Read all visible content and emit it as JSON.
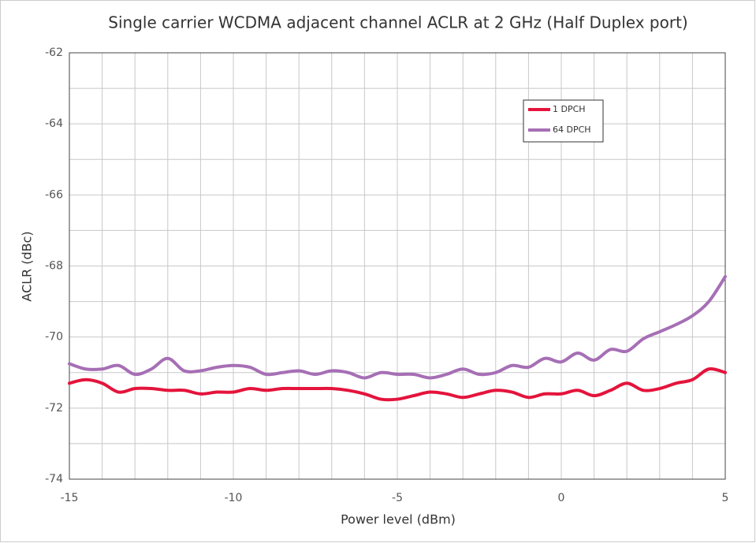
{
  "chart_data": {
    "type": "line",
    "title": "Single carrier WCDMA adjacent channel ACLR at 2 GHz (Half Duplex port)",
    "xlabel": "Power level (dBm)",
    "ylabel": "ACLR (dBc)",
    "x": [
      -15,
      -14.5,
      -14,
      -13.5,
      -13,
      -12.5,
      -12,
      -11.5,
      -11,
      -10.5,
      -10,
      -9.5,
      -9,
      -8.5,
      -8,
      -7.5,
      -7,
      -6.5,
      -6,
      -5.5,
      -5,
      -4.5,
      -4,
      -3.5,
      -3,
      -2.5,
      -2,
      -1.5,
      -1,
      -0.5,
      0,
      0.5,
      1,
      1.5,
      2,
      2.5,
      3,
      3.5,
      4,
      4.5,
      5
    ],
    "series": [
      {
        "name": "1 DPCH",
        "color": "#e4143c",
        "values": [
          -71.3,
          -71.2,
          -71.3,
          -71.55,
          -71.45,
          -71.45,
          -71.5,
          -71.5,
          -71.6,
          -71.55,
          -71.55,
          -71.45,
          -71.5,
          -71.45,
          -71.45,
          -71.45,
          -71.45,
          -71.5,
          -71.6,
          -71.75,
          -71.75,
          -71.65,
          -71.55,
          -71.6,
          -71.7,
          -71.6,
          -71.5,
          -71.55,
          -71.7,
          -71.6,
          -71.6,
          -71.5,
          -71.65,
          -71.5,
          -71.3,
          -71.5,
          -71.45,
          -71.3,
          -71.2,
          -70.9,
          -71.0
        ]
      },
      {
        "name": "64 DPCH",
        "color": "#a66fb5",
        "values": [
          -70.75,
          -70.9,
          -70.9,
          -70.8,
          -71.05,
          -70.9,
          -70.6,
          -70.95,
          -70.95,
          -70.85,
          -70.8,
          -70.85,
          -71.05,
          -71.0,
          -70.95,
          -71.05,
          -70.95,
          -71.0,
          -71.15,
          -71.0,
          -71.05,
          -71.05,
          -71.15,
          -71.05,
          -70.9,
          -71.05,
          -71.0,
          -70.8,
          -70.85,
          -70.6,
          -70.7,
          -70.45,
          -70.65,
          -70.35,
          -70.4,
          -70.05,
          -69.85,
          -69.65,
          -69.4,
          -69.0,
          -68.3
        ]
      }
    ],
    "xlim": [
      -15,
      5
    ],
    "xticks": [
      -15,
      -10,
      -5,
      0,
      5
    ],
    "xminor": [
      -14,
      -13,
      -12,
      -11,
      -9,
      -8,
      -7,
      -6,
      -4,
      -3,
      -2,
      -1,
      1,
      2,
      3,
      4
    ],
    "ylim": [
      -74,
      -62
    ],
    "yticks": [
      -62,
      -64,
      -66,
      -68,
      -70,
      -72,
      -74
    ],
    "yminor": [
      -63,
      -65,
      -67,
      -69,
      -71,
      -73
    ],
    "grid": true,
    "legend": "upper right"
  }
}
